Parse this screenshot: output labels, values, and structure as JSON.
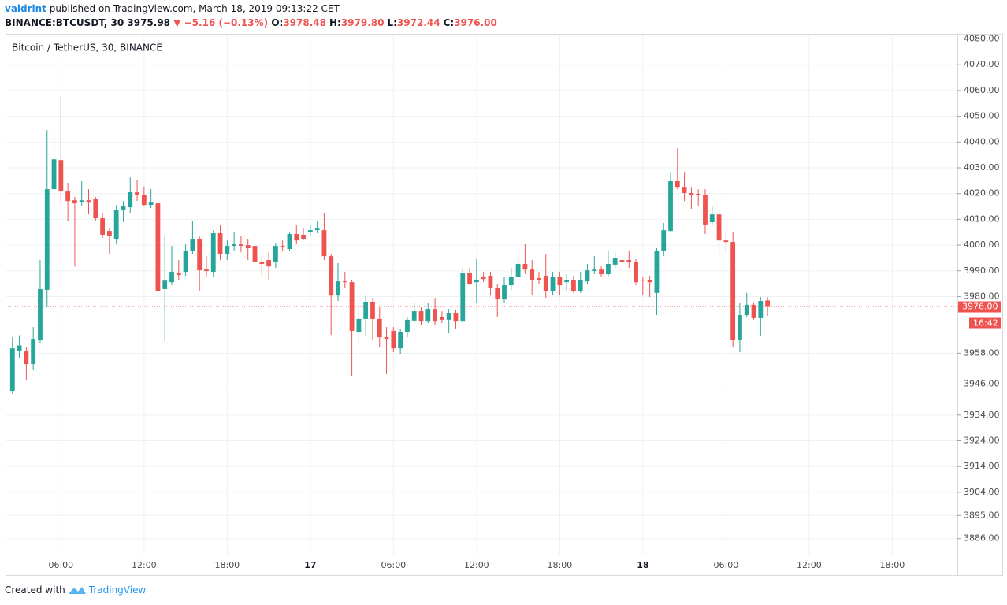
{
  "header": {
    "author": "valdrint",
    "published": "published on TradingView.com, March 18, 2019 09:13:22 CET",
    "symbol": "BINANCE:BTCUSDT, 30",
    "last": "3975.98",
    "change": "▼ −5.16 (−0.13%)",
    "ohlc": [
      {
        "label": "O:",
        "value": "3978.48"
      },
      {
        "label": "H:",
        "value": "3979.80"
      },
      {
        "label": "L:",
        "value": "3972.44"
      },
      {
        "label": "C:",
        "value": "3976.00"
      }
    ]
  },
  "footer": {
    "created": "Created with",
    "brand": "TradingView"
  },
  "chart_data": {
    "type": "candlestick",
    "title": "Bitcoin / TetherUS, 30, BINANCE",
    "up_color": "#26a69a",
    "down_color": "#ef5350",
    "grid": true,
    "last_price_label": "3976.00",
    "countdown": "16:42",
    "xlim": [
      -1,
      136.4
    ],
    "xticks": [
      {
        "value": 7,
        "label": "06:00"
      },
      {
        "value": 19,
        "label": "12:00"
      },
      {
        "value": 31,
        "label": "18:00"
      },
      {
        "value": 43,
        "label": "17"
      },
      {
        "value": 55,
        "label": "06:00"
      },
      {
        "value": 67,
        "label": "12:00"
      },
      {
        "value": 79,
        "label": "18:00"
      },
      {
        "value": 91,
        "label": "18"
      },
      {
        "value": 103,
        "label": "06:00"
      },
      {
        "value": 115,
        "label": "12:00"
      },
      {
        "value": 127,
        "label": "18:00"
      }
    ],
    "ylim": [
      3879.8,
      4081.7
    ],
    "yticks": [
      {
        "value": 3886,
        "label": "3886.00"
      },
      {
        "value": 3895,
        "label": "3895.00"
      },
      {
        "value": 3904,
        "label": "3904.00"
      },
      {
        "value": 3914,
        "label": "3914.00"
      },
      {
        "value": 3924,
        "label": "3924.00"
      },
      {
        "value": 3934,
        "label": "3934.00"
      },
      {
        "value": 3946,
        "label": "3946.00"
      },
      {
        "value": 3958,
        "label": "3958.00"
      },
      {
        "value": 3980,
        "label": "3980.00"
      },
      {
        "value": 3990,
        "label": "3990.00"
      },
      {
        "value": 4000,
        "label": "4000.00"
      },
      {
        "value": 4010,
        "label": "4010.00"
      },
      {
        "value": 4020,
        "label": "4020.00"
      },
      {
        "value": 4030,
        "label": "4030.00"
      },
      {
        "value": 4040,
        "label": "4040.00"
      },
      {
        "value": 4050,
        "label": "4050.00"
      },
      {
        "value": 4060,
        "label": "4060.00"
      },
      {
        "value": 4070,
        "label": "4070.00"
      },
      {
        "value": 4080,
        "label": "4080.00"
      }
    ],
    "open": [
      3943.4,
      3959,
      3958.7,
      3953.8,
      3963,
      3982.6,
      4021.7,
      4033,
      4020.8,
      4017.4,
      4016.8,
      4017.4,
      4018,
      4010.4,
      4005.5,
      4002.4,
      4013.5,
      4014.7,
      4020.5,
      4019.6,
      4015.6,
      4016.2,
      3982.9,
      3985.6,
      3989,
      3989.6,
      3997.9,
      4002.4,
      3990.5,
      3989.6,
      4004.6,
      3996.6,
      3999.7,
      4000.3,
      4000,
      3999.7,
      3993.3,
      3994.2,
      3993.3,
      3999.7,
      3998.5,
      4004.3,
      4004,
      4005.2,
      4005.8,
      4005.8,
      3995.7,
      3980.4,
      3985.9,
      3985.6,
      3966.1,
      3971.3,
      3978,
      3971.3,
      3964.2,
      3966.7,
      3959.9,
      3966.1,
      3970.7,
      3974.3,
      3970.3,
      3975.2,
      3971.9,
      3971,
      3973.7,
      3970.3,
      3989,
      3985.6,
      3987.5,
      3988.1,
      3983.5,
      3978.9,
      3984.4,
      3987.5,
      3992.7,
      3990.5,
      3987.2,
      3988.1,
      3982,
      3987.5,
      3985.6,
      3986.5,
      3982,
      3985.9,
      3989.9,
      3990.5,
      3988.7,
      3992.4,
      3994.2,
      3994.2,
      3993.3,
      3986.5,
      3986.5,
      3981.4,
      3997.9,
      4005.5,
      4024.8,
      4022.3,
      4020.2,
      4019.9,
      4019.3,
      4008.9,
      4011.9,
      4001.8,
      4001.2,
      3963,
      3972.8,
      3976.8,
      3971.6,
      3978.48
    ],
    "high": [
      3964.2,
      3965,
      3960.5,
      3968.2,
      3994.2,
      4044.6,
      4044.6,
      4057.5,
      4024.2,
      4018.7,
      4024.8,
      4021.7,
      4018.7,
      4012.5,
      4006.4,
      4015.6,
      4017.1,
      4026.3,
      4025.4,
      4022.6,
      4021.7,
      4017.1,
      4003.4,
      3999.7,
      3994.2,
      4000.3,
      4009.5,
      4003.4,
      3995.7,
      4005.8,
      4008,
      4001.8,
      4004.9,
      4003.4,
      4002.4,
      4001.8,
      3995.7,
      3997.2,
      4000.9,
      4001.8,
      4004.9,
      4008,
      4006.4,
      4008,
      4009.5,
      4012.5,
      3996.6,
      3993,
      3989.6,
      3986.5,
      3977.4,
      3980.4,
      3979.5,
      3975.8,
      3968.2,
      3968.2,
      3967.3,
      3971.9,
      3977.4,
      3975.8,
      3977.4,
      3979.5,
      3974.3,
      3975.2,
      3974.9,
      3991.1,
      3991.1,
      3994.5,
      3989.6,
      3989.6,
      3985,
      3987.5,
      3991.1,
      3995.7,
      4000.3,
      3994.2,
      3989.6,
      3996.3,
      3989.6,
      3989.6,
      3988.7,
      3988.1,
      3989.6,
      3992.7,
      3995.7,
      3991.7,
      3997.9,
      3997.2,
      3996.3,
      3997.9,
      3994.5,
      3987.5,
      3988.1,
      3998.8,
      4008.6,
      4028.4,
      4037.6,
      4028.4,
      4022.3,
      4021.7,
      4021.7,
      4015,
      4014.1,
      4004.9,
      4004.9,
      3977.4,
      3981.4,
      3977.4,
      3979.8,
      3979.8
    ],
    "low": [
      3942.2,
      3956,
      3947.7,
      3951.4,
      3962,
      3975.8,
      4012.5,
      4016.2,
      4009.5,
      3991.7,
      4015,
      4011.9,
      4009.5,
      4002.8,
      3996.6,
      4000.3,
      4008.9,
      4012.5,
      4017.1,
      4015,
      4014.4,
      3980.4,
      3962.7,
      3984.4,
      3986.2,
      3988.1,
      3996.6,
      3982,
      3987.5,
      3987.5,
      3994.2,
      3994.2,
      3997.9,
      3997.2,
      3994.2,
      3988.7,
      3988.1,
      3986.5,
      3991.1,
      3997.9,
      3997.9,
      4000.3,
      4001.8,
      4003.4,
      4004.6,
      3994.2,
      3965.1,
      3978.3,
      3983.5,
      3949.2,
      3962,
      3965.1,
      3963.3,
      3960.5,
      3949.9,
      3958.4,
      3957.5,
      3964.2,
      3969.7,
      3969.1,
      3969.7,
      3969.1,
      3969.7,
      3965.8,
      3967.3,
      3969.7,
      3984.4,
      3977.4,
      3985.6,
      3980.4,
      3972.2,
      3977.4,
      3982.6,
      3986.5,
      3988.7,
      3980.4,
      3985,
      3979.5,
      3980.4,
      3980.4,
      3982,
      3981.4,
      3981.4,
      3985,
      3988.7,
      3987.5,
      3987.5,
      3991.1,
      3989.6,
      3991.1,
      3984.4,
      3980.4,
      3979.8,
      3972.8,
      3995.7,
      4004.9,
      4021.7,
      4017.1,
      4014.1,
      4015,
      4004.3,
      4008,
      3994.8,
      3997.2,
      3960.5,
      3958.4,
      3972.2,
      3971,
      3964.5,
      3972.44
    ],
    "close": [
      3959.9,
      3961,
      3953.8,
      3963.6,
      3982.9,
      4021.7,
      4033.3,
      4020.8,
      4017.1,
      4016.2,
      4017.4,
      4016.5,
      4010.4,
      4004,
      4003.4,
      4013.5,
      4015,
      4020.5,
      4019.6,
      4015.6,
      4016.5,
      3982,
      3986.2,
      3989.6,
      3988.4,
      3997.9,
      4002.4,
      3990.2,
      3989.9,
      4004.6,
      3996.6,
      3999.7,
      4000.3,
      3999.7,
      3998.8,
      3993.3,
      3992.7,
      3991.7,
      3999.7,
      3999.4,
      4004.3,
      4001.8,
      4002.4,
      4005.8,
      4006.4,
      3995.7,
      3980.4,
      3985.9,
      3985.6,
      3966.7,
      3971.3,
      3978,
      3971.3,
      3964.2,
      3963.6,
      3959.9,
      3966.1,
      3971,
      3974.3,
      3970.3,
      3975.2,
      3970.3,
      3971,
      3973.7,
      3970.3,
      3989,
      3985,
      3986.5,
      3986.8,
      3983.5,
      3978.9,
      3984.4,
      3987.5,
      3992.7,
      3990.5,
      3986.5,
      3986.5,
      3982,
      3987.5,
      3984.4,
      3986.5,
      3982,
      3986.5,
      3990.2,
      3990.5,
      3988.7,
      3992.7,
      3994.8,
      3993.3,
      3993.3,
      3985.6,
      3986.2,
      3985.6,
      3997.9,
      4005.8,
      4024.8,
      4022.3,
      4020.2,
      4019.6,
      4019.3,
      4008,
      4011.9,
      4001.8,
      4001.2,
      3963,
      3972.8,
      3976.8,
      3971.6,
      3978.3,
      3976
    ]
  }
}
